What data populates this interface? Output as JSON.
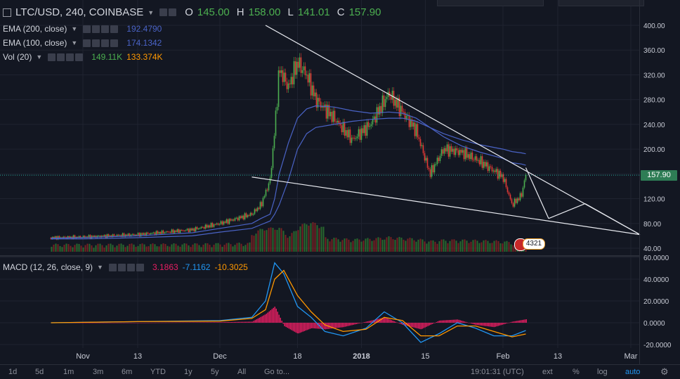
{
  "symbol": {
    "title": "LTC/USD, 240, COINBASE"
  },
  "ohlc": {
    "o_label": "O",
    "o": "145.00",
    "h_label": "H",
    "h": "158.00",
    "l_label": "L",
    "l": "141.01",
    "c_label": "C",
    "c": "157.90"
  },
  "indicators": [
    {
      "name": "EMA (200, close)",
      "value": "192.4790",
      "color": "#4a63c6"
    },
    {
      "name": "EMA (100, close)",
      "value": "174.1342",
      "color": "#4a63c6"
    },
    {
      "name": "Vol (20)",
      "value": "149.11K",
      "value2": "133.374K",
      "color": "#4caf50",
      "color2": "#ff9800"
    }
  ],
  "macd": {
    "name": "MACD (12, 26, close, 9)",
    "hist": "3.1863",
    "macd": "-7.1162",
    "signal": "-10.3025",
    "hist_color": "#e91e63",
    "macd_color": "#2196f3",
    "signal_color": "#ff9800"
  },
  "price_tag": "157.90",
  "badge_count": "4321",
  "bottom": {
    "ranges": [
      "1d",
      "5d",
      "1m",
      "3m",
      "6m",
      "YTD",
      "1y",
      "5y",
      "All"
    ],
    "goto": "Go to...",
    "time": "19:01:31 (UTC)",
    "ext": "ext",
    "pct": "%",
    "log": "log",
    "auto": "auto"
  },
  "chart_data": [
    {
      "type": "line",
      "title": "LTC/USD, 240, COINBASE",
      "xlabel": "",
      "ylabel": "",
      "x_ticks": [
        "Nov",
        "13",
        "Dec",
        "18",
        "2018",
        "15",
        "Feb",
        "13",
        "Mar"
      ],
      "y_ticks": [
        "40.00",
        "80.00",
        "120.00",
        "160.00",
        "200.00",
        "240.00",
        "280.00",
        "320.00",
        "360.00",
        "400.00"
      ],
      "ylim": [
        30,
        410
      ],
      "x": [
        "Oct 25",
        "Nov 1",
        "Nov 13",
        "Nov 25",
        "Dec 1",
        "Dec 8",
        "Dec 10",
        "Dec 12",
        "Dec 13",
        "Dec 14",
        "Dec 16",
        "Dec 18",
        "Dec 20",
        "Dec 22",
        "Dec 26",
        "Dec 30",
        "Jan 3",
        "Jan 7",
        "Jan 10",
        "Jan 13",
        "Jan 16",
        "Jan 19",
        "Jan 23",
        "Jan 27",
        "Feb 1",
        "Feb 3",
        "Feb 5",
        "Feb 6"
      ],
      "series": [
        {
          "name": "LTC/USD",
          "color": "#d1d4dc",
          "values": [
            57,
            58,
            62,
            70,
            80,
            95,
            110,
            150,
            230,
            330,
            300,
            340,
            320,
            280,
            250,
            215,
            240,
            290,
            260,
            230,
            160,
            200,
            195,
            180,
            155,
            110,
            125,
            157.9
          ]
        },
        {
          "name": "EMA (200, close)",
          "color": "#4a63c6",
          "values": [
            55,
            55,
            57,
            60,
            66,
            72,
            78,
            84,
            95,
            110,
            150,
            200,
            225,
            235,
            240,
            245,
            248,
            250,
            250,
            245,
            235,
            225,
            215,
            207,
            200,
            196,
            194,
            192.5
          ]
        },
        {
          "name": "EMA (100, close)",
          "color": "#4a63c6",
          "values": [
            56,
            57,
            60,
            65,
            72,
            80,
            88,
            95,
            120,
            160,
            210,
            250,
            265,
            270,
            268,
            262,
            258,
            260,
            258,
            250,
            235,
            220,
            205,
            195,
            185,
            178,
            176,
            174.1
          ]
        }
      ],
      "annotations": {
        "upper_trendline": [
          [
            "Dec 11",
            400
          ],
          [
            "Mar 3",
            62
          ]
        ],
        "lower_trendline": [
          [
            "Dec 8",
            155
          ],
          [
            "Mar 3",
            62
          ]
        ],
        "projection": [
          [
            "Feb 6",
            170
          ],
          [
            "Feb 11",
            88
          ],
          [
            "Feb 19",
            112
          ],
          [
            "Mar 3",
            62
          ]
        ],
        "last_price_line": 157.9
      }
    },
    {
      "type": "bar",
      "title": "Vol (20)",
      "values_label": [
        "149.11K",
        "133.374K"
      ]
    },
    {
      "type": "line",
      "title": "MACD (12, 26, close, 9)",
      "y_ticks": [
        "-20.0000",
        "0.0000",
        "20.0000",
        "40.0000",
        "60.0000"
      ],
      "ylim": [
        -25,
        62
      ],
      "x": [
        "Oct 25",
        "Nov 13",
        "Dec 1",
        "Dec 8",
        "Dec 11",
        "Dec 13",
        "Dec 15",
        "Dec 18",
        "Dec 21",
        "Dec 24",
        "Dec 28",
        "Jan 2",
        "Jan 6",
        "Jan 10",
        "Jan 14",
        "Jan 18",
        "Jan 22",
        "Jan 26",
        "Jan 30",
        "Feb 3",
        "Feb 6"
      ],
      "series": [
        {
          "name": "MACD",
          "color": "#2196f3",
          "values": [
            0,
            1,
            2,
            5,
            20,
            55,
            45,
            15,
            5,
            -8,
            -12,
            -5,
            10,
            0,
            -18,
            -10,
            0,
            -5,
            -12,
            -12,
            -7.1
          ]
        },
        {
          "name": "Signal",
          "color": "#ff9800",
          "values": [
            0,
            1,
            1.5,
            4,
            12,
            40,
            48,
            25,
            10,
            -2,
            -8,
            -6,
            5,
            2,
            -12,
            -12,
            -3,
            -3,
            -8,
            -13,
            -10.3
          ]
        },
        {
          "name": "Histogram",
          "color": "#e91e63",
          "values": [
            0,
            0,
            0.5,
            1,
            8,
            15,
            -3,
            -10,
            -5,
            -6,
            -4,
            1,
            5,
            -2,
            -6,
            2,
            3,
            -2,
            -4,
            1,
            3.2
          ]
        }
      ]
    }
  ]
}
